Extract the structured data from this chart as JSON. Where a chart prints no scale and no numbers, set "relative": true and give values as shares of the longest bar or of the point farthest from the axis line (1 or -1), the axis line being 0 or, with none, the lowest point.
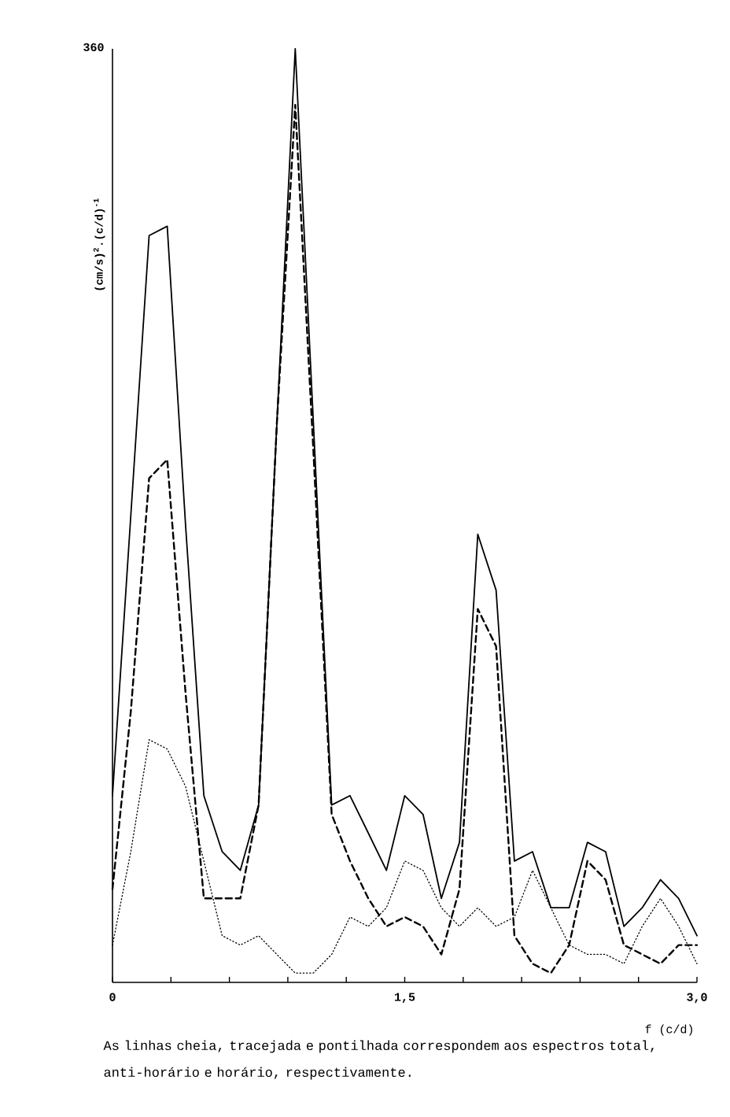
{
  "chart_data": {
    "type": "line",
    "relative": true,
    "x": [
      0,
      0.094,
      0.188,
      0.281,
      0.375,
      0.469,
      0.563,
      0.656,
      0.75,
      0.844,
      0.938,
      1.031,
      1.125,
      1.219,
      1.313,
      1.406,
      1.5,
      1.594,
      1.688,
      1.781,
      1.875,
      1.969,
      2.063,
      2.156,
      2.25,
      2.344,
      2.438,
      2.531,
      2.625,
      2.719,
      2.813,
      2.906,
      3.0
    ],
    "series": [
      {
        "color": "#000000",
        "line_style": "solid",
        "values": [
          0.2,
          0.5,
          0.8,
          0.81,
          0.49,
          0.2,
          0.14,
          0.12,
          0.19,
          0.6,
          1,
          0.6,
          0.19,
          0.2,
          0.16,
          0.12,
          0.2,
          0.18,
          0.09,
          0.15,
          0.48,
          0.42,
          0.13,
          0.14,
          0.08,
          0.08,
          0.15,
          0.14,
          0.06,
          0.08,
          0.11,
          0.09,
          0.05
        ]
      },
      {
        "color": "#000000",
        "line_style": "dashed",
        "values": [
          0.1,
          0.29,
          0.54,
          0.56,
          0.31,
          0.09,
          0.09,
          0.09,
          0.19,
          0.6,
          0.94,
          0.57,
          0.18,
          0.13,
          0.09,
          0.06,
          0.07,
          0.06,
          0.03,
          0.1,
          0.4,
          0.36,
          0.05,
          0.02,
          0.01,
          0.04,
          0.13,
          0.11,
          0.04,
          0.03,
          0.02,
          0.04,
          0.04
        ]
      },
      {
        "color": "#000000",
        "line_style": "dotted",
        "values": [
          0.04,
          0.14,
          0.26,
          0.25,
          0.21,
          0.13,
          0.05,
          0.04,
          0.05,
          0.03,
          0.01,
          0.01,
          0.03,
          0.07,
          0.06,
          0.08,
          0.13,
          0.12,
          0.08,
          0.06,
          0.08,
          0.06,
          0.07,
          0.12,
          0.08,
          0.04,
          0.03,
          0.03,
          0.02,
          0.06,
          0.09,
          0.06,
          0.02
        ]
      }
    ],
    "xlim": [
      0,
      3.0
    ],
    "xticks": [
      {
        "value": 0,
        "label": "0"
      },
      {
        "value": 0.3,
        "label": null
      },
      {
        "value": 0.6,
        "label": null
      },
      {
        "value": 0.9,
        "label": null
      },
      {
        "value": 1.2,
        "label": null
      },
      {
        "value": 1.5,
        "label": "1,5"
      },
      {
        "value": 1.8,
        "label": null
      },
      {
        "value": 2.1,
        "label": null
      },
      {
        "value": 2.4,
        "label": null
      },
      {
        "value": 2.7,
        "label": null
      },
      {
        "value": 3.0,
        "label": "3,0"
      }
    ],
    "xlabel": "f (c/d)",
    "ylabel": "(cm/s)$^{2}$.(c/d)$^{-1}$",
    "annotations": [
      "360",
      "As linhas cheia, tracejada e pontilhada correspondem aos espectros total, anti-horário e horário, respectivamente."
    ]
  }
}
